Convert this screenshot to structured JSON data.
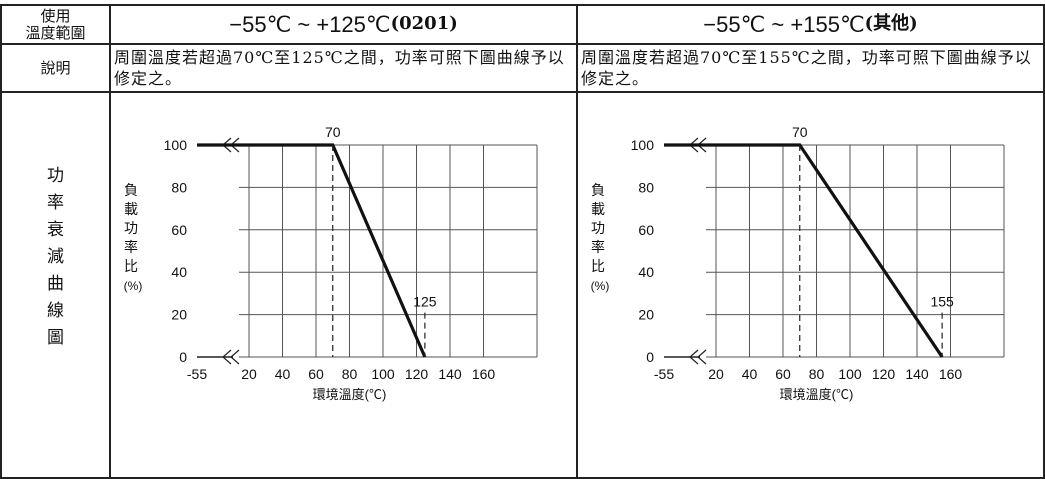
{
  "table": {
    "row1": {
      "label": [
        "使用",
        "溫度範圍"
      ],
      "col1": {
        "range": "−55℃ ~ +125℃",
        "suffix": "(0201)"
      },
      "col2": {
        "range": "−55℃ ~ +155℃",
        "suffix": "(其他)"
      }
    },
    "row2": {
      "label": "說明",
      "col1": "周圍溫度若超過70℃至125℃之間，功率可照下圖曲線予以修定之。",
      "col2": "周圍溫度若超過70℃至155℃之間，功率可照下圖曲線予以修定之。"
    },
    "row3": {
      "label": [
        "功",
        "率",
        "衰",
        "減",
        "曲",
        "線",
        "圖"
      ]
    }
  },
  "chart_data": [
    {
      "type": "line",
      "xlabel": "環境溫度(℃)",
      "ylabel": [
        "負",
        "載",
        "功",
        "率",
        "比",
        "(%)"
      ],
      "x_ticks": [
        "-55",
        "20",
        "40",
        "60",
        "80",
        "100",
        "120",
        "140",
        "160"
      ],
      "y_ticks": [
        "0",
        "20",
        "40",
        "60",
        "80",
        "100"
      ],
      "ylim": [
        0,
        100
      ],
      "grid": true,
      "axis_break": true,
      "x": [
        -55,
        70,
        125
      ],
      "y": [
        100,
        100,
        0
      ],
      "annotations": [
        {
          "label": "70",
          "x": 70,
          "y": 100
        },
        {
          "label": "125",
          "x": 125,
          "y": 0
        }
      ]
    },
    {
      "type": "line",
      "xlabel": "環境溫度(℃)",
      "ylabel": [
        "負",
        "載",
        "功",
        "率",
        "比",
        "(%)"
      ],
      "x_ticks": [
        "-55",
        "20",
        "40",
        "60",
        "80",
        "100",
        "120",
        "140",
        "160"
      ],
      "y_ticks": [
        "0",
        "20",
        "40",
        "60",
        "80",
        "100"
      ],
      "ylim": [
        0,
        100
      ],
      "grid": true,
      "axis_break": true,
      "x": [
        -55,
        70,
        155
      ],
      "y": [
        100,
        100,
        0
      ],
      "annotations": [
        {
          "label": "70",
          "x": 70,
          "y": 100
        },
        {
          "label": "155",
          "x": 155,
          "y": 0
        }
      ]
    }
  ]
}
